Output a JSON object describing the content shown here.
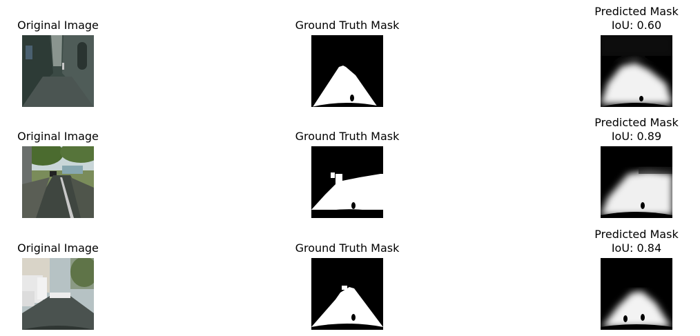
{
  "rows": [
    {
      "original_title": "Original Image",
      "gt_title": "Ground Truth Mask",
      "pred_title_line1": "Predicted Mask",
      "pred_title_line2": "IoU: 0.60"
    },
    {
      "original_title": "Original Image",
      "gt_title": "Ground Truth Mask",
      "pred_title_line1": "Predicted Mask",
      "pred_title_line2": "IoU: 0.89"
    },
    {
      "original_title": "Original Image",
      "gt_title": "Ground Truth Mask",
      "pred_title_line1": "Predicted Mask",
      "pred_title_line2": "IoU: 0.84"
    }
  ]
}
